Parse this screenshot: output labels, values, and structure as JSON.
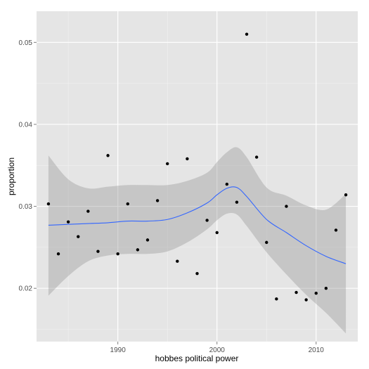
{
  "chart_data": {
    "type": "scatter",
    "title": "",
    "xlabel": "hobbes political power",
    "ylabel": "proportion",
    "xlim": [
      1981.8,
      2014.2
    ],
    "ylim": [
      0.0135,
      0.0538
    ],
    "x_ticks": [
      1990,
      2000,
      2010
    ],
    "x_tick_labels": [
      "1990",
      "2000",
      "2010"
    ],
    "y_ticks": [
      0.02,
      0.03,
      0.04,
      0.05
    ],
    "y_tick_labels": [
      "0.02",
      "0.03",
      "0.04",
      "0.05"
    ],
    "grid": true,
    "legend": "none",
    "points": {
      "x": [
        1983,
        1984,
        1985,
        1986,
        1987,
        1988,
        1989,
        1990,
        1991,
        1992,
        1993,
        1994,
        1995,
        1996,
        1997,
        1998,
        1999,
        2000,
        2001,
        2002,
        2003,
        2004,
        2005,
        2006,
        2007,
        2008,
        2009,
        2010,
        2011,
        2012,
        2013
      ],
      "y": [
        0.0303,
        0.0242,
        0.0281,
        0.0263,
        0.0294,
        0.0245,
        0.0362,
        0.0242,
        0.0303,
        0.0247,
        0.0259,
        0.0307,
        0.0352,
        0.0233,
        0.0358,
        0.0218,
        0.0283,
        0.0268,
        0.0327,
        0.0305,
        0.051,
        0.036,
        0.0256,
        0.0187,
        0.03,
        0.0195,
        0.0186,
        0.0194,
        0.02,
        0.0271,
        0.0314
      ]
    },
    "smooth": {
      "x": [
        1983,
        1985,
        1987,
        1989,
        1991,
        1993,
        1995,
        1997,
        1999,
        2000,
        2001,
        2002,
        2003,
        2005,
        2007,
        2009,
        2011,
        2013
      ],
      "fit": [
        0.0277,
        0.0278,
        0.0279,
        0.028,
        0.0282,
        0.0282,
        0.0284,
        0.0292,
        0.0304,
        0.0314,
        0.0322,
        0.0323,
        0.0312,
        0.0284,
        0.0268,
        0.0252,
        0.0239,
        0.023
      ],
      "lower": [
        0.0191,
        0.0215,
        0.0233,
        0.024,
        0.0242,
        0.0242,
        0.0245,
        0.0256,
        0.0272,
        0.0283,
        0.0291,
        0.029,
        0.0276,
        0.0244,
        0.0217,
        0.0192,
        0.017,
        0.0145
      ],
      "upper": [
        0.0362,
        0.0333,
        0.0322,
        0.0324,
        0.0326,
        0.0326,
        0.0326,
        0.0331,
        0.0341,
        0.0354,
        0.0366,
        0.0372,
        0.036,
        0.0323,
        0.0313,
        0.0301,
        0.0296,
        0.0315
      ]
    },
    "colors": {
      "panel": "#e5e5e5",
      "grid_major": "#ffffff",
      "grid_minor": "#f2f2f2",
      "point": "#000000",
      "line": "#3366ff",
      "ribbon": "#999999"
    }
  }
}
